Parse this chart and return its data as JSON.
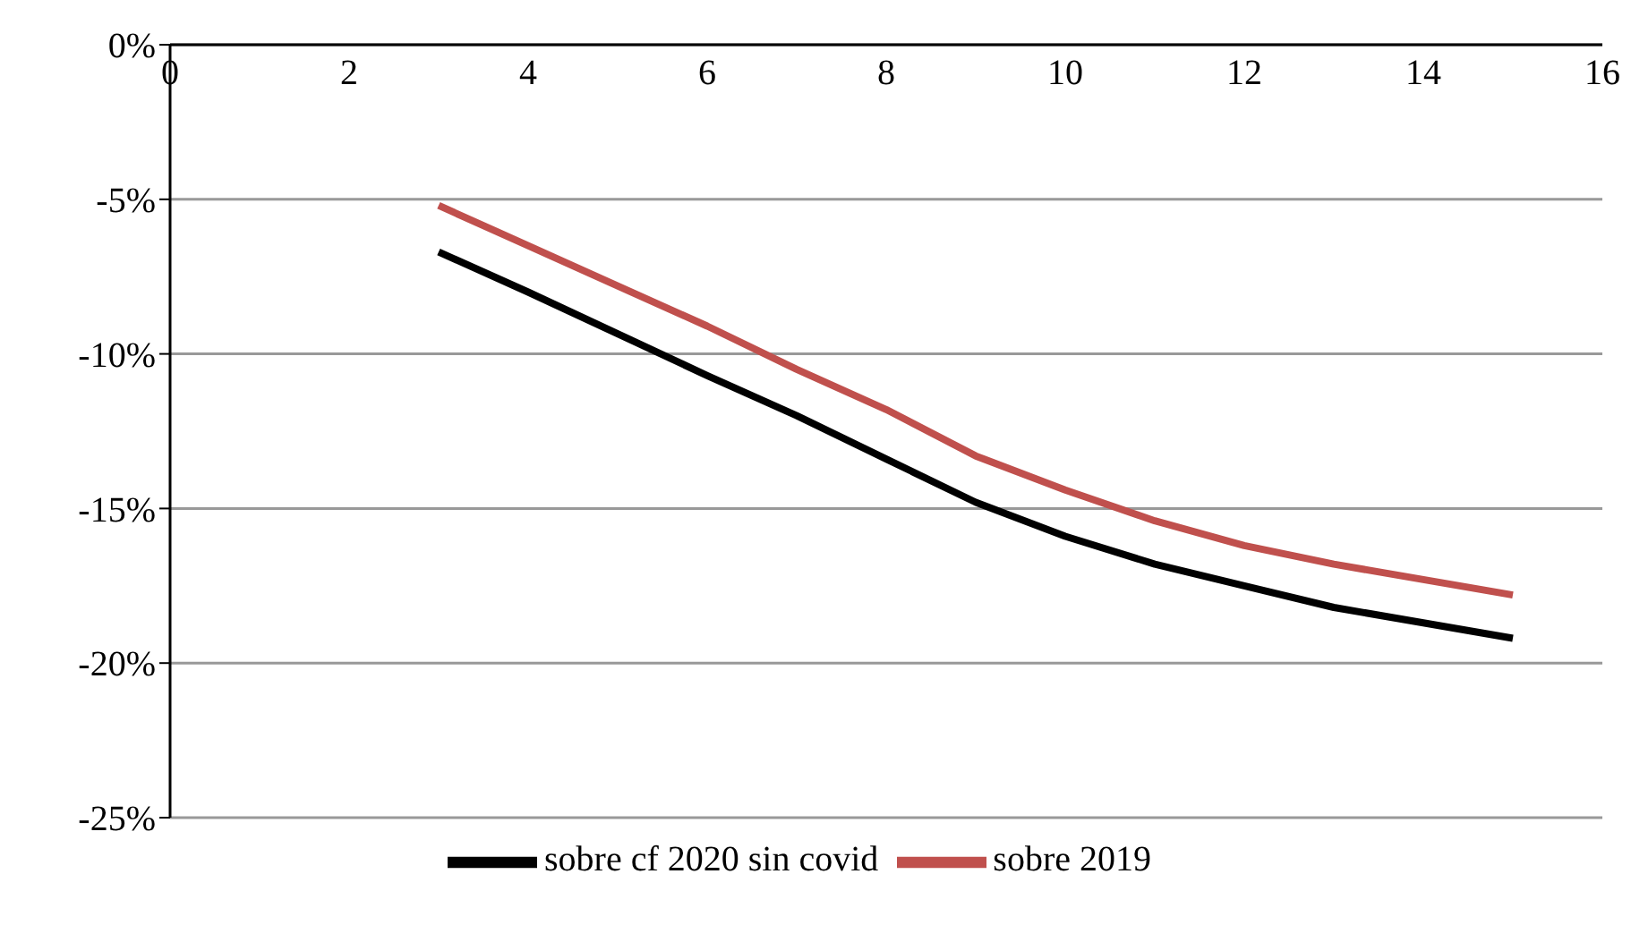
{
  "chart_data": {
    "type": "line",
    "x": [
      3,
      4,
      5,
      6,
      7,
      8,
      9,
      10,
      11,
      12,
      13,
      14,
      15
    ],
    "series": [
      {
        "name": "sobre cf 2020 sin covid",
        "color": "#000000",
        "values": [
          -6.7,
          -8.0,
          -9.35,
          -10.7,
          -12.0,
          -13.4,
          -14.8,
          -15.9,
          -16.8,
          -17.5,
          -18.2,
          -18.7,
          -19.2
        ]
      },
      {
        "name": "sobre 2019",
        "color": "#c0504d",
        "values": [
          -5.2,
          -6.5,
          -7.8,
          -9.1,
          -10.5,
          -11.8,
          -13.3,
          -14.4,
          -15.4,
          -16.2,
          -16.8,
          -17.3,
          -17.8
        ]
      }
    ],
    "xlim": [
      0,
      16
    ],
    "xticks": [
      0,
      2,
      4,
      6,
      8,
      10,
      12,
      14,
      16
    ],
    "ylim": [
      -25,
      0
    ],
    "yticks": [
      {
        "value": -25,
        "label": "-25%"
      },
      {
        "value": -20,
        "label": "-20%"
      },
      {
        "value": -15,
        "label": "-15%"
      },
      {
        "value": -10,
        "label": "-10%"
      },
      {
        "value": -5,
        "label": "-5%"
      },
      {
        "value": 0,
        "label": "0%"
      }
    ],
    "grid": "y",
    "legend": "bottom",
    "marker": "none",
    "line_style": "solid"
  }
}
